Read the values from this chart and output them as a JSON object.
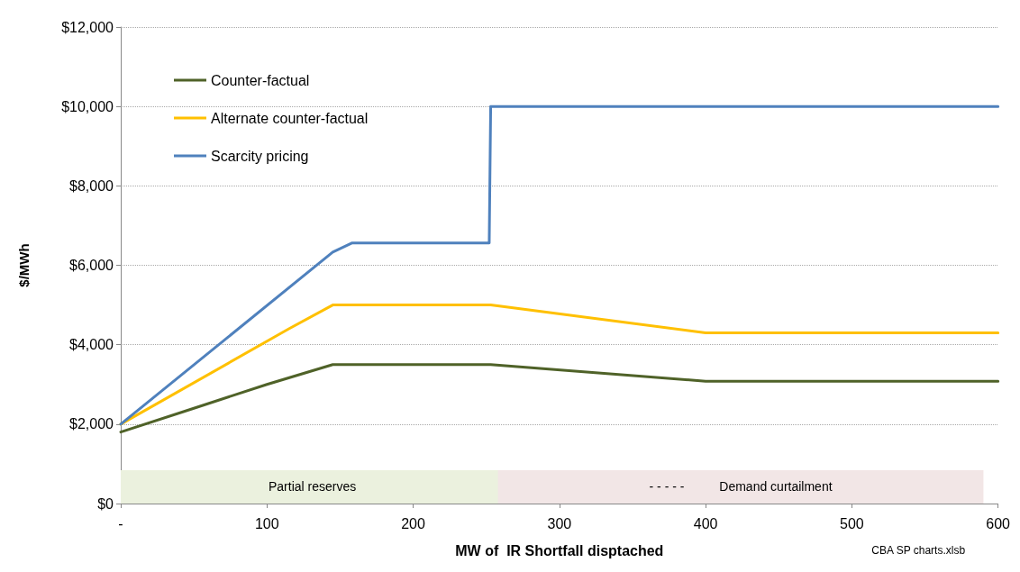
{
  "chart_data": {
    "type": "line",
    "xlabel": "MW of  IR Shortfall disptached",
    "ylabel": "$/MWh",
    "xlim": [
      0,
      600
    ],
    "xticks": [
      {
        "value": 0,
        "label": "-"
      },
      100,
      200,
      300,
      400,
      500,
      600
    ],
    "ylim": [
      0,
      12000
    ],
    "yticks": [
      {
        "value": 0,
        "label": "$0"
      },
      {
        "value": 2000,
        "label": "$2,000"
      },
      {
        "value": 4000,
        "label": "$4,000"
      },
      {
        "value": 6000,
        "label": "$6,000"
      },
      {
        "value": 8000,
        "label": "$8,000"
      },
      {
        "value": 10000,
        "label": "$10,000"
      },
      {
        "value": 12000,
        "label": "$12,000"
      }
    ],
    "grid": "y",
    "legend": "top left",
    "marker": "none",
    "line_style": "solid",
    "series": [
      {
        "name": "Counter-factual",
        "color": "#4f6228",
        "x": [
          0,
          50,
          100,
          145,
          253,
          400,
          600
        ],
        "values": [
          1800,
          2400,
          3000,
          3500,
          3500,
          3080,
          3080
        ]
      },
      {
        "name": "Alternate counter-factual",
        "color": "#ffc000",
        "x": [
          0,
          115,
          145,
          253,
          400,
          600
        ],
        "values": [
          2000,
          4400,
          5000,
          5000,
          4300,
          4300
        ]
      },
      {
        "name": "Scarcity pricing",
        "color": "#4f81bd",
        "x": [
          0,
          145,
          158,
          252,
          253,
          600
        ],
        "values": [
          2000,
          6330,
          6560,
          6560,
          10000,
          10000
        ]
      }
    ],
    "bands": [
      {
        "axis": "x",
        "from": 0,
        "to": 262,
        "label": "Partial reserves",
        "color": "#ebf1de"
      },
      {
        "axis": "x",
        "from": 258,
        "to": 590,
        "label": "- - - - -          Demand curtailment",
        "color": "#f2e6e6"
      }
    ],
    "annotations": [
      "CBA SP charts.xlsb"
    ]
  }
}
